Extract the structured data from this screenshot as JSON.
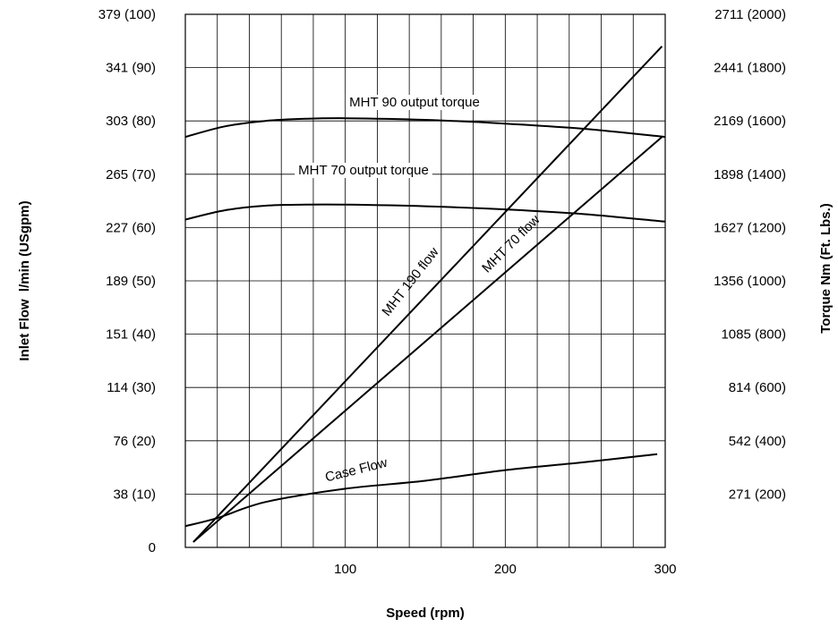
{
  "chart_data": {
    "type": "line",
    "xlabel": "Speed (rpm)",
    "ylabel": "Inlet Flow  l/min (USgpm)",
    "y2label": "Torque Nm (Ft. Lbs.)",
    "xlim": [
      0,
      300
    ],
    "ylim": [
      0,
      100
    ],
    "y2lim": [
      0,
      2000
    ],
    "grid": true,
    "x_ticks": [
      {
        "value": 100,
        "label": "100"
      },
      {
        "value": 200,
        "label": "200"
      },
      {
        "value": 300,
        "label": "300"
      }
    ],
    "y_ticks": [
      {
        "value": 0,
        "label": "0"
      },
      {
        "value": 10,
        "label": "38 (10)"
      },
      {
        "value": 20,
        "label": "76 (20)"
      },
      {
        "value": 30,
        "label": "114 (30)"
      },
      {
        "value": 40,
        "label": "151 (40)"
      },
      {
        "value": 50,
        "label": "189 (50)"
      },
      {
        "value": 60,
        "label": "227 (60)"
      },
      {
        "value": 70,
        "label": "265 (70)"
      },
      {
        "value": 80,
        "label": "303 (80)"
      },
      {
        "value": 90,
        "label": "341 (90)"
      },
      {
        "value": 100,
        "label": "379 (100)"
      }
    ],
    "y2_ticks": [
      {
        "value": 200,
        "label": "271 (200)"
      },
      {
        "value": 400,
        "label": "542 (400)"
      },
      {
        "value": 600,
        "label": "814 (600)"
      },
      {
        "value": 800,
        "label": "1085 (800)"
      },
      {
        "value": 1000,
        "label": "1356 (1000)"
      },
      {
        "value": 1200,
        "label": "1627 (1200)"
      },
      {
        "value": 1400,
        "label": "1898 (1400)"
      },
      {
        "value": 1600,
        "label": "2169 (1600)"
      },
      {
        "value": 1800,
        "label": "2441 (1800)"
      },
      {
        "value": 2000,
        "label": "2711 (2000)"
      }
    ],
    "series": [
      {
        "name": "MHT 190 flow",
        "axis": "left",
        "x": [
          5,
          298
        ],
        "y": [
          1,
          94
        ]
      },
      {
        "name": "MHT 70 flow",
        "axis": "left",
        "x": [
          5,
          298
        ],
        "y": [
          1,
          77
        ]
      },
      {
        "name": "Case Flow",
        "axis": "left",
        "x": [
          0,
          20,
          50,
          100,
          150,
          200,
          250,
          295
        ],
        "y": [
          4,
          5.5,
          8.5,
          11,
          12.5,
          14.5,
          16,
          17.5
        ]
      },
      {
        "name": "MHT 90 output torque",
        "axis": "right",
        "x": [
          0,
          25,
          50,
          75,
          100,
          150,
          200,
          250,
          300
        ],
        "y": [
          1540,
          1580,
          1600,
          1608,
          1610,
          1604,
          1590,
          1570,
          1540
        ]
      },
      {
        "name": "MHT 70 output torque",
        "axis": "right",
        "x": [
          0,
          25,
          50,
          75,
          100,
          150,
          200,
          250,
          300
        ],
        "y": [
          1230,
          1265,
          1282,
          1286,
          1286,
          1280,
          1268,
          1250,
          1222
        ]
      }
    ]
  }
}
